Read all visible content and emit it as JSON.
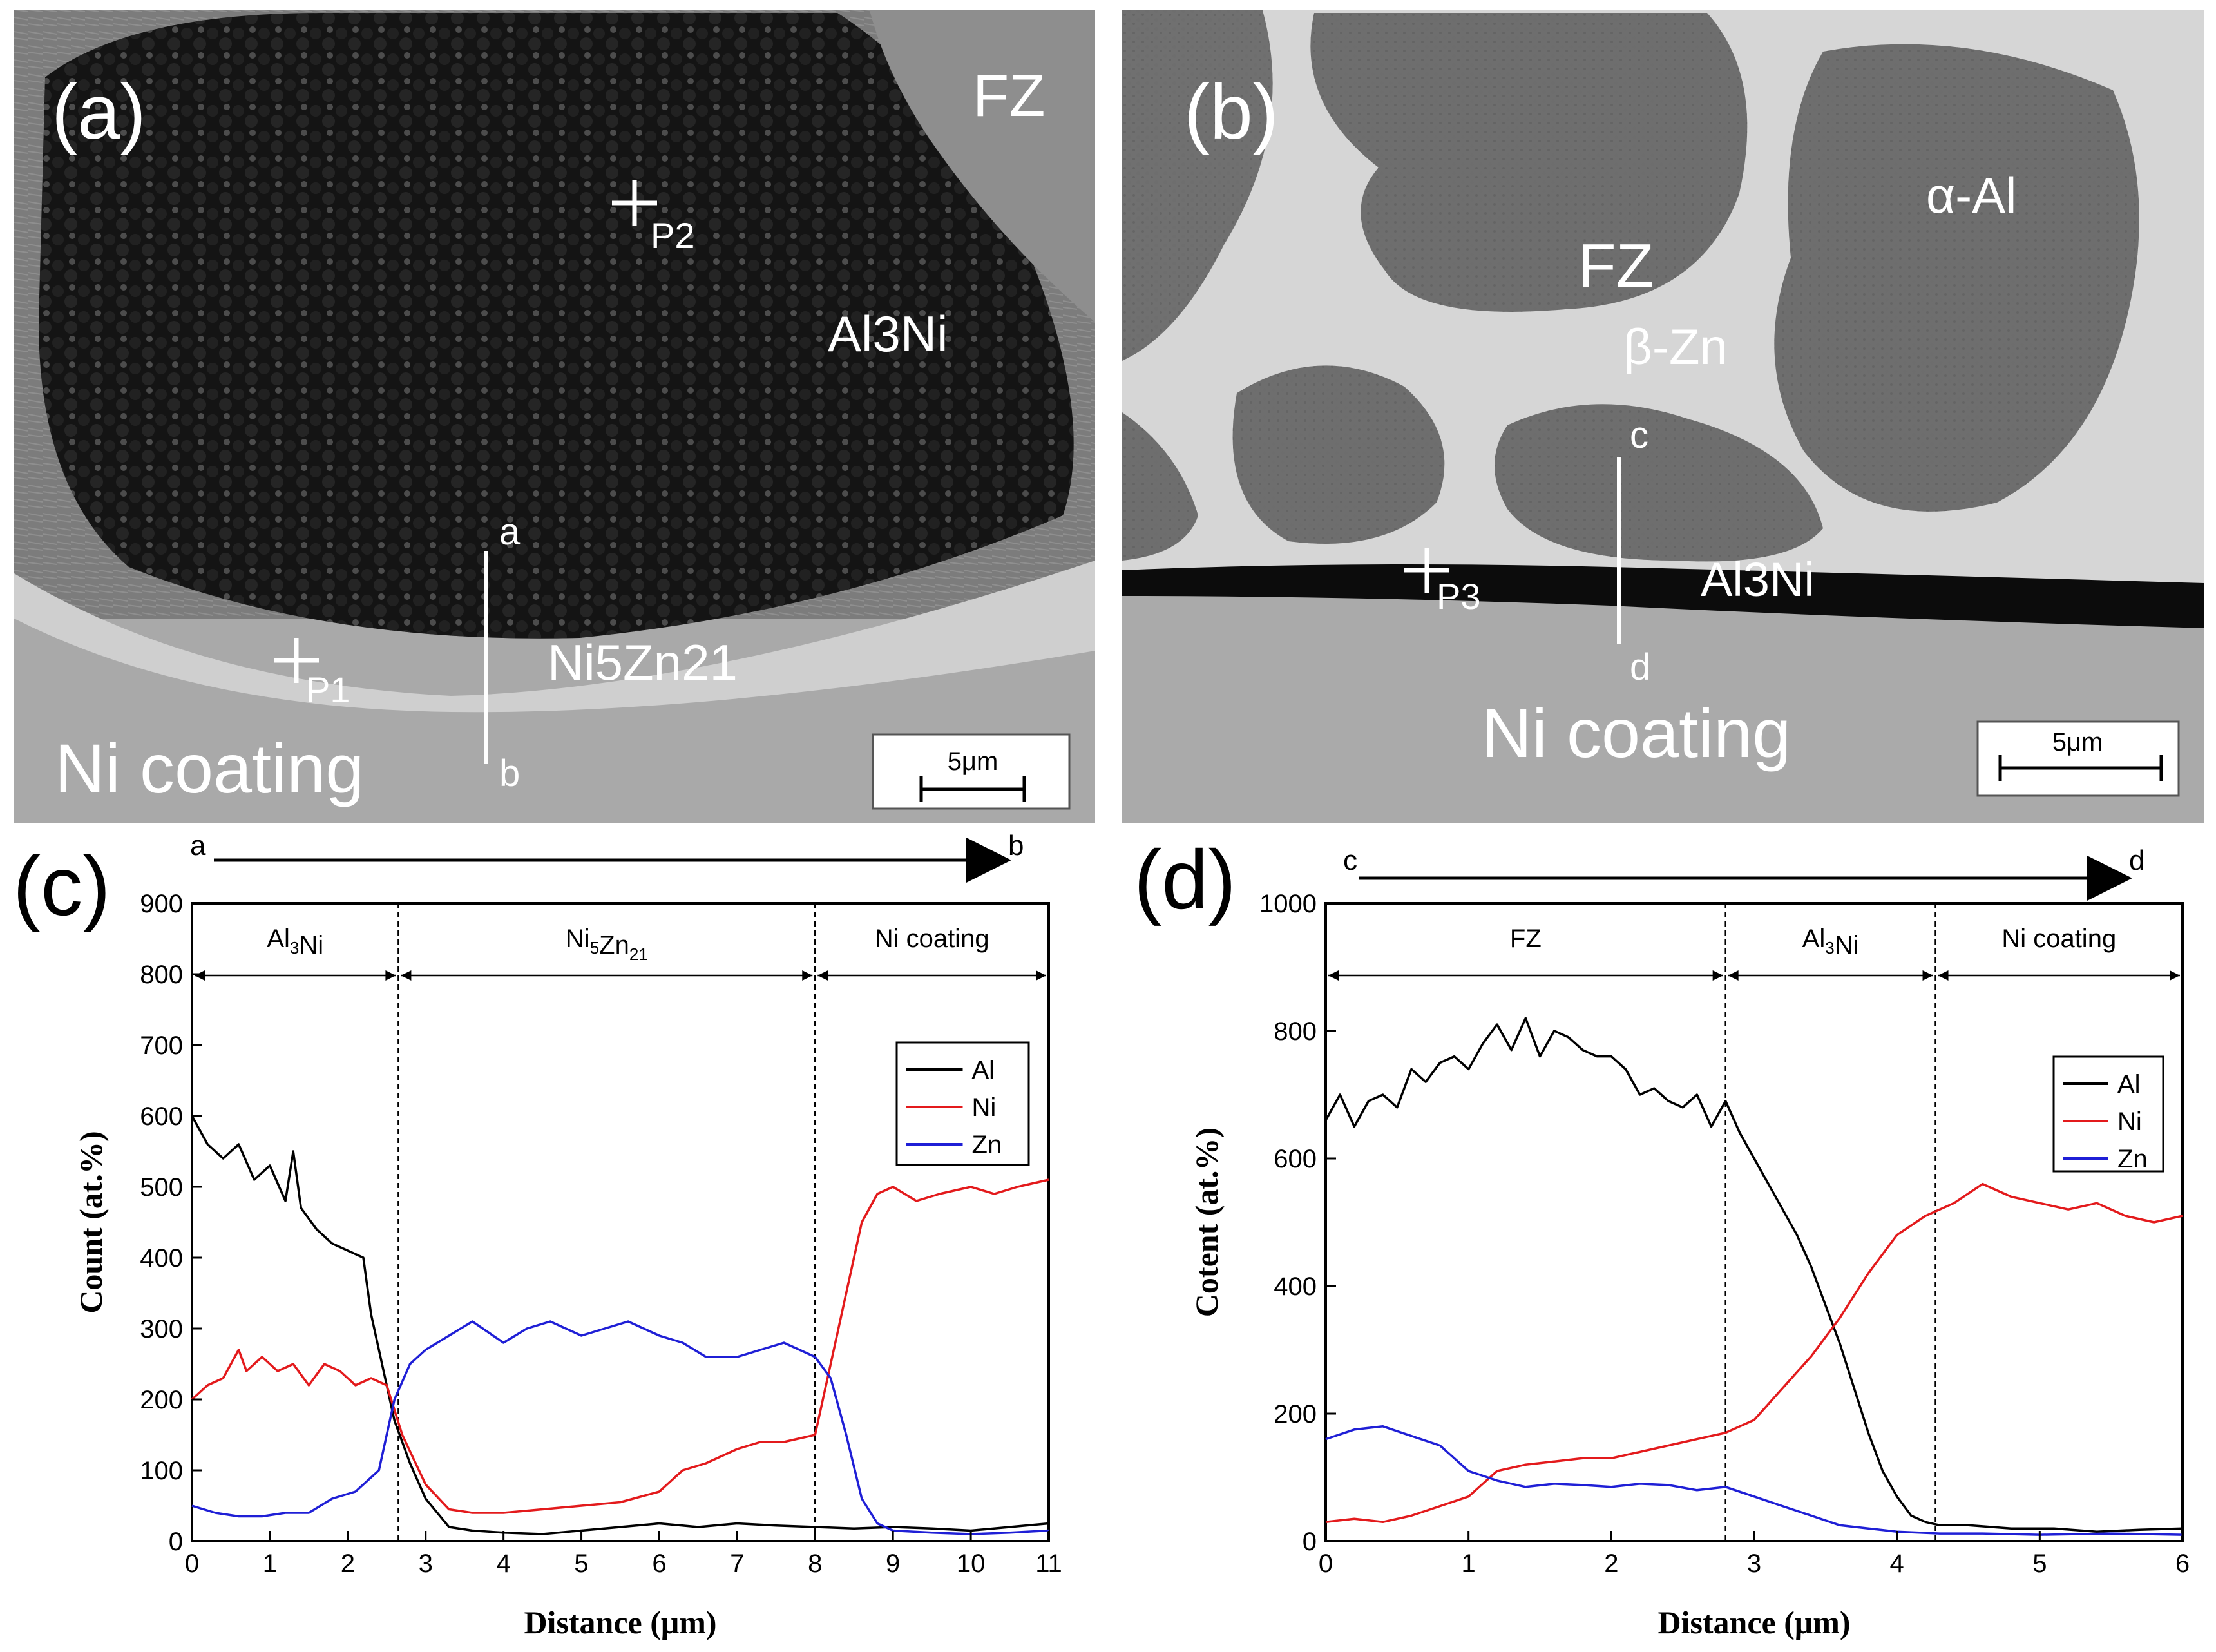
{
  "panel_a": {
    "label": "(a)",
    "regions": {
      "fz": "FZ",
      "al3ni": "Al3Ni",
      "ni5zn21": "Ni5Zn21",
      "ni_coating": "Ni coating"
    },
    "points": {
      "p1": "P1",
      "p2": "P2"
    },
    "line_ends": {
      "start": "a",
      "end": "b"
    },
    "scale_bar": "5μm"
  },
  "panel_b": {
    "label": "(b)",
    "regions": {
      "fz": "FZ",
      "alpha_al": "α-Al",
      "beta_zn": "β-Zn",
      "al3ni": "Al3Ni",
      "ni_coating": "Ni coating"
    },
    "points": {
      "p3": "P3"
    },
    "line_ends": {
      "start": "c",
      "end": "d"
    },
    "scale_bar": "5μm"
  },
  "colors": {
    "al": "#000000",
    "ni": "#e31a1c",
    "zn": "#1f1fd6"
  },
  "chart_data": [
    {
      "label": "(c)",
      "type": "line",
      "arrow": {
        "start": "a",
        "end": "b"
      },
      "xlabel": "Distance (μm)",
      "ylabel": "Count (at.%)",
      "xlim": [
        0,
        11
      ],
      "ylim": [
        0,
        900
      ],
      "xticks": [
        0,
        1,
        2,
        3,
        4,
        5,
        6,
        7,
        8,
        9,
        10,
        11
      ],
      "yticks": [
        0,
        100,
        200,
        300,
        400,
        500,
        600,
        700,
        800,
        900
      ],
      "zones": [
        {
          "name": "Al3Ni",
          "from": 0,
          "to": 2.65
        },
        {
          "name": "Ni5Zn21",
          "from": 2.65,
          "to": 8.0
        },
        {
          "name": "Ni coating",
          "from": 8.0,
          "to": 11
        }
      ],
      "boundaries": [
        2.65,
        8.0
      ],
      "legend": [
        "Al",
        "Ni",
        "Zn"
      ],
      "series": [
        {
          "name": "Al",
          "x": [
            0,
            0.2,
            0.4,
            0.6,
            0.8,
            1.0,
            1.2,
            1.3,
            1.4,
            1.6,
            1.8,
            2.0,
            2.2,
            2.3,
            2.5,
            2.6,
            2.8,
            3.0,
            3.3,
            3.6,
            4.0,
            4.5,
            5.0,
            5.5,
            6.0,
            6.5,
            7.0,
            7.5,
            8.0,
            8.5,
            9.0,
            9.5,
            10.0,
            10.5,
            11.0
          ],
          "values": [
            600,
            560,
            540,
            560,
            510,
            530,
            480,
            550,
            470,
            440,
            420,
            410,
            400,
            320,
            220,
            170,
            110,
            60,
            20,
            15,
            12,
            10,
            15,
            20,
            25,
            20,
            25,
            22,
            20,
            18,
            20,
            18,
            15,
            20,
            25
          ]
        },
        {
          "name": "Ni",
          "x": [
            0,
            0.2,
            0.4,
            0.6,
            0.7,
            0.9,
            1.1,
            1.3,
            1.5,
            1.7,
            1.9,
            2.1,
            2.3,
            2.5,
            2.7,
            3.0,
            3.3,
            3.6,
            4.0,
            4.5,
            5.0,
            5.5,
            6.0,
            6.3,
            6.6,
            7.0,
            7.3,
            7.6,
            8.0,
            8.2,
            8.4,
            8.6,
            8.8,
            9.0,
            9.3,
            9.6,
            10.0,
            10.3,
            10.6,
            11.0
          ],
          "values": [
            200,
            220,
            230,
            270,
            240,
            260,
            240,
            250,
            220,
            250,
            240,
            220,
            230,
            220,
            150,
            80,
            45,
            40,
            40,
            45,
            50,
            55,
            70,
            100,
            110,
            130,
            140,
            140,
            150,
            250,
            350,
            450,
            490,
            500,
            480,
            490,
            500,
            490,
            500,
            510
          ]
        },
        {
          "name": "Zn",
          "x": [
            0,
            0.3,
            0.6,
            0.9,
            1.2,
            1.5,
            1.8,
            2.1,
            2.4,
            2.6,
            2.8,
            3.0,
            3.3,
            3.6,
            4.0,
            4.3,
            4.6,
            5.0,
            5.3,
            5.6,
            6.0,
            6.3,
            6.6,
            7.0,
            7.3,
            7.6,
            8.0,
            8.2,
            8.4,
            8.6,
            8.8,
            9.0,
            9.5,
            10.0,
            10.5,
            11.0
          ],
          "values": [
            50,
            40,
            35,
            35,
            40,
            40,
            60,
            70,
            100,
            200,
            250,
            270,
            290,
            310,
            280,
            300,
            310,
            290,
            300,
            310,
            290,
            280,
            260,
            260,
            270,
            280,
            260,
            230,
            150,
            60,
            25,
            15,
            12,
            10,
            12,
            15
          ]
        }
      ]
    },
    {
      "label": "(d)",
      "type": "line",
      "arrow": {
        "start": "c",
        "end": "d"
      },
      "xlabel": "Distance (μm)",
      "ylabel": "Cotent (at.%)",
      "xlim": [
        0,
        6
      ],
      "ylim": [
        0,
        1000
      ],
      "xticks": [
        0,
        1,
        2,
        3,
        4,
        5,
        6
      ],
      "yticks": [
        0,
        200,
        400,
        600,
        800,
        1000
      ],
      "zones": [
        {
          "name": "FZ",
          "from": 0,
          "to": 2.8
        },
        {
          "name": "Al3Ni",
          "from": 2.8,
          "to": 4.27
        },
        {
          "name": "Ni coating",
          "from": 4.27,
          "to": 6
        }
      ],
      "boundaries": [
        2.8,
        4.27
      ],
      "legend": [
        "Al",
        "Ni",
        "Zn"
      ],
      "series": [
        {
          "name": "Al",
          "x": [
            0,
            0.1,
            0.2,
            0.3,
            0.4,
            0.5,
            0.6,
            0.7,
            0.8,
            0.9,
            1.0,
            1.1,
            1.2,
            1.3,
            1.4,
            1.5,
            1.6,
            1.7,
            1.8,
            1.9,
            2.0,
            2.1,
            2.2,
            2.3,
            2.4,
            2.5,
            2.6,
            2.7,
            2.8,
            2.9,
            3.0,
            3.1,
            3.2,
            3.3,
            3.4,
            3.5,
            3.6,
            3.7,
            3.8,
            3.9,
            4.0,
            4.1,
            4.2,
            4.3,
            4.5,
            4.8,
            5.1,
            5.4,
            5.7,
            6.0
          ],
          "values": [
            660,
            700,
            650,
            690,
            700,
            680,
            740,
            720,
            750,
            760,
            740,
            780,
            810,
            770,
            820,
            760,
            800,
            790,
            770,
            760,
            760,
            740,
            700,
            710,
            690,
            680,
            700,
            650,
            690,
            640,
            600,
            560,
            520,
            480,
            430,
            370,
            310,
            240,
            170,
            110,
            70,
            40,
            30,
            25,
            25,
            20,
            20,
            15,
            18,
            20
          ]
        },
        {
          "name": "Ni",
          "x": [
            0,
            0.2,
            0.4,
            0.6,
            0.8,
            1.0,
            1.2,
            1.4,
            1.6,
            1.8,
            2.0,
            2.2,
            2.4,
            2.6,
            2.8,
            3.0,
            3.2,
            3.4,
            3.6,
            3.8,
            4.0,
            4.2,
            4.4,
            4.6,
            4.8,
            5.0,
            5.2,
            5.4,
            5.6,
            5.8,
            6.0
          ],
          "values": [
            30,
            35,
            30,
            40,
            55,
            70,
            110,
            120,
            125,
            130,
            130,
            140,
            150,
            160,
            170,
            190,
            240,
            290,
            350,
            420,
            480,
            510,
            530,
            560,
            540,
            530,
            520,
            530,
            510,
            500,
            510
          ]
        },
        {
          "name": "Zn",
          "x": [
            0,
            0.2,
            0.4,
            0.6,
            0.8,
            1.0,
            1.2,
            1.4,
            1.6,
            1.8,
            2.0,
            2.2,
            2.4,
            2.6,
            2.8,
            3.0,
            3.2,
            3.4,
            3.6,
            3.8,
            4.0,
            4.3,
            4.6,
            5.0,
            5.5,
            6.0
          ],
          "values": [
            160,
            175,
            180,
            165,
            150,
            110,
            95,
            85,
            90,
            88,
            85,
            90,
            88,
            80,
            85,
            70,
            55,
            40,
            25,
            20,
            15,
            12,
            12,
            10,
            12,
            10
          ]
        }
      ]
    }
  ]
}
